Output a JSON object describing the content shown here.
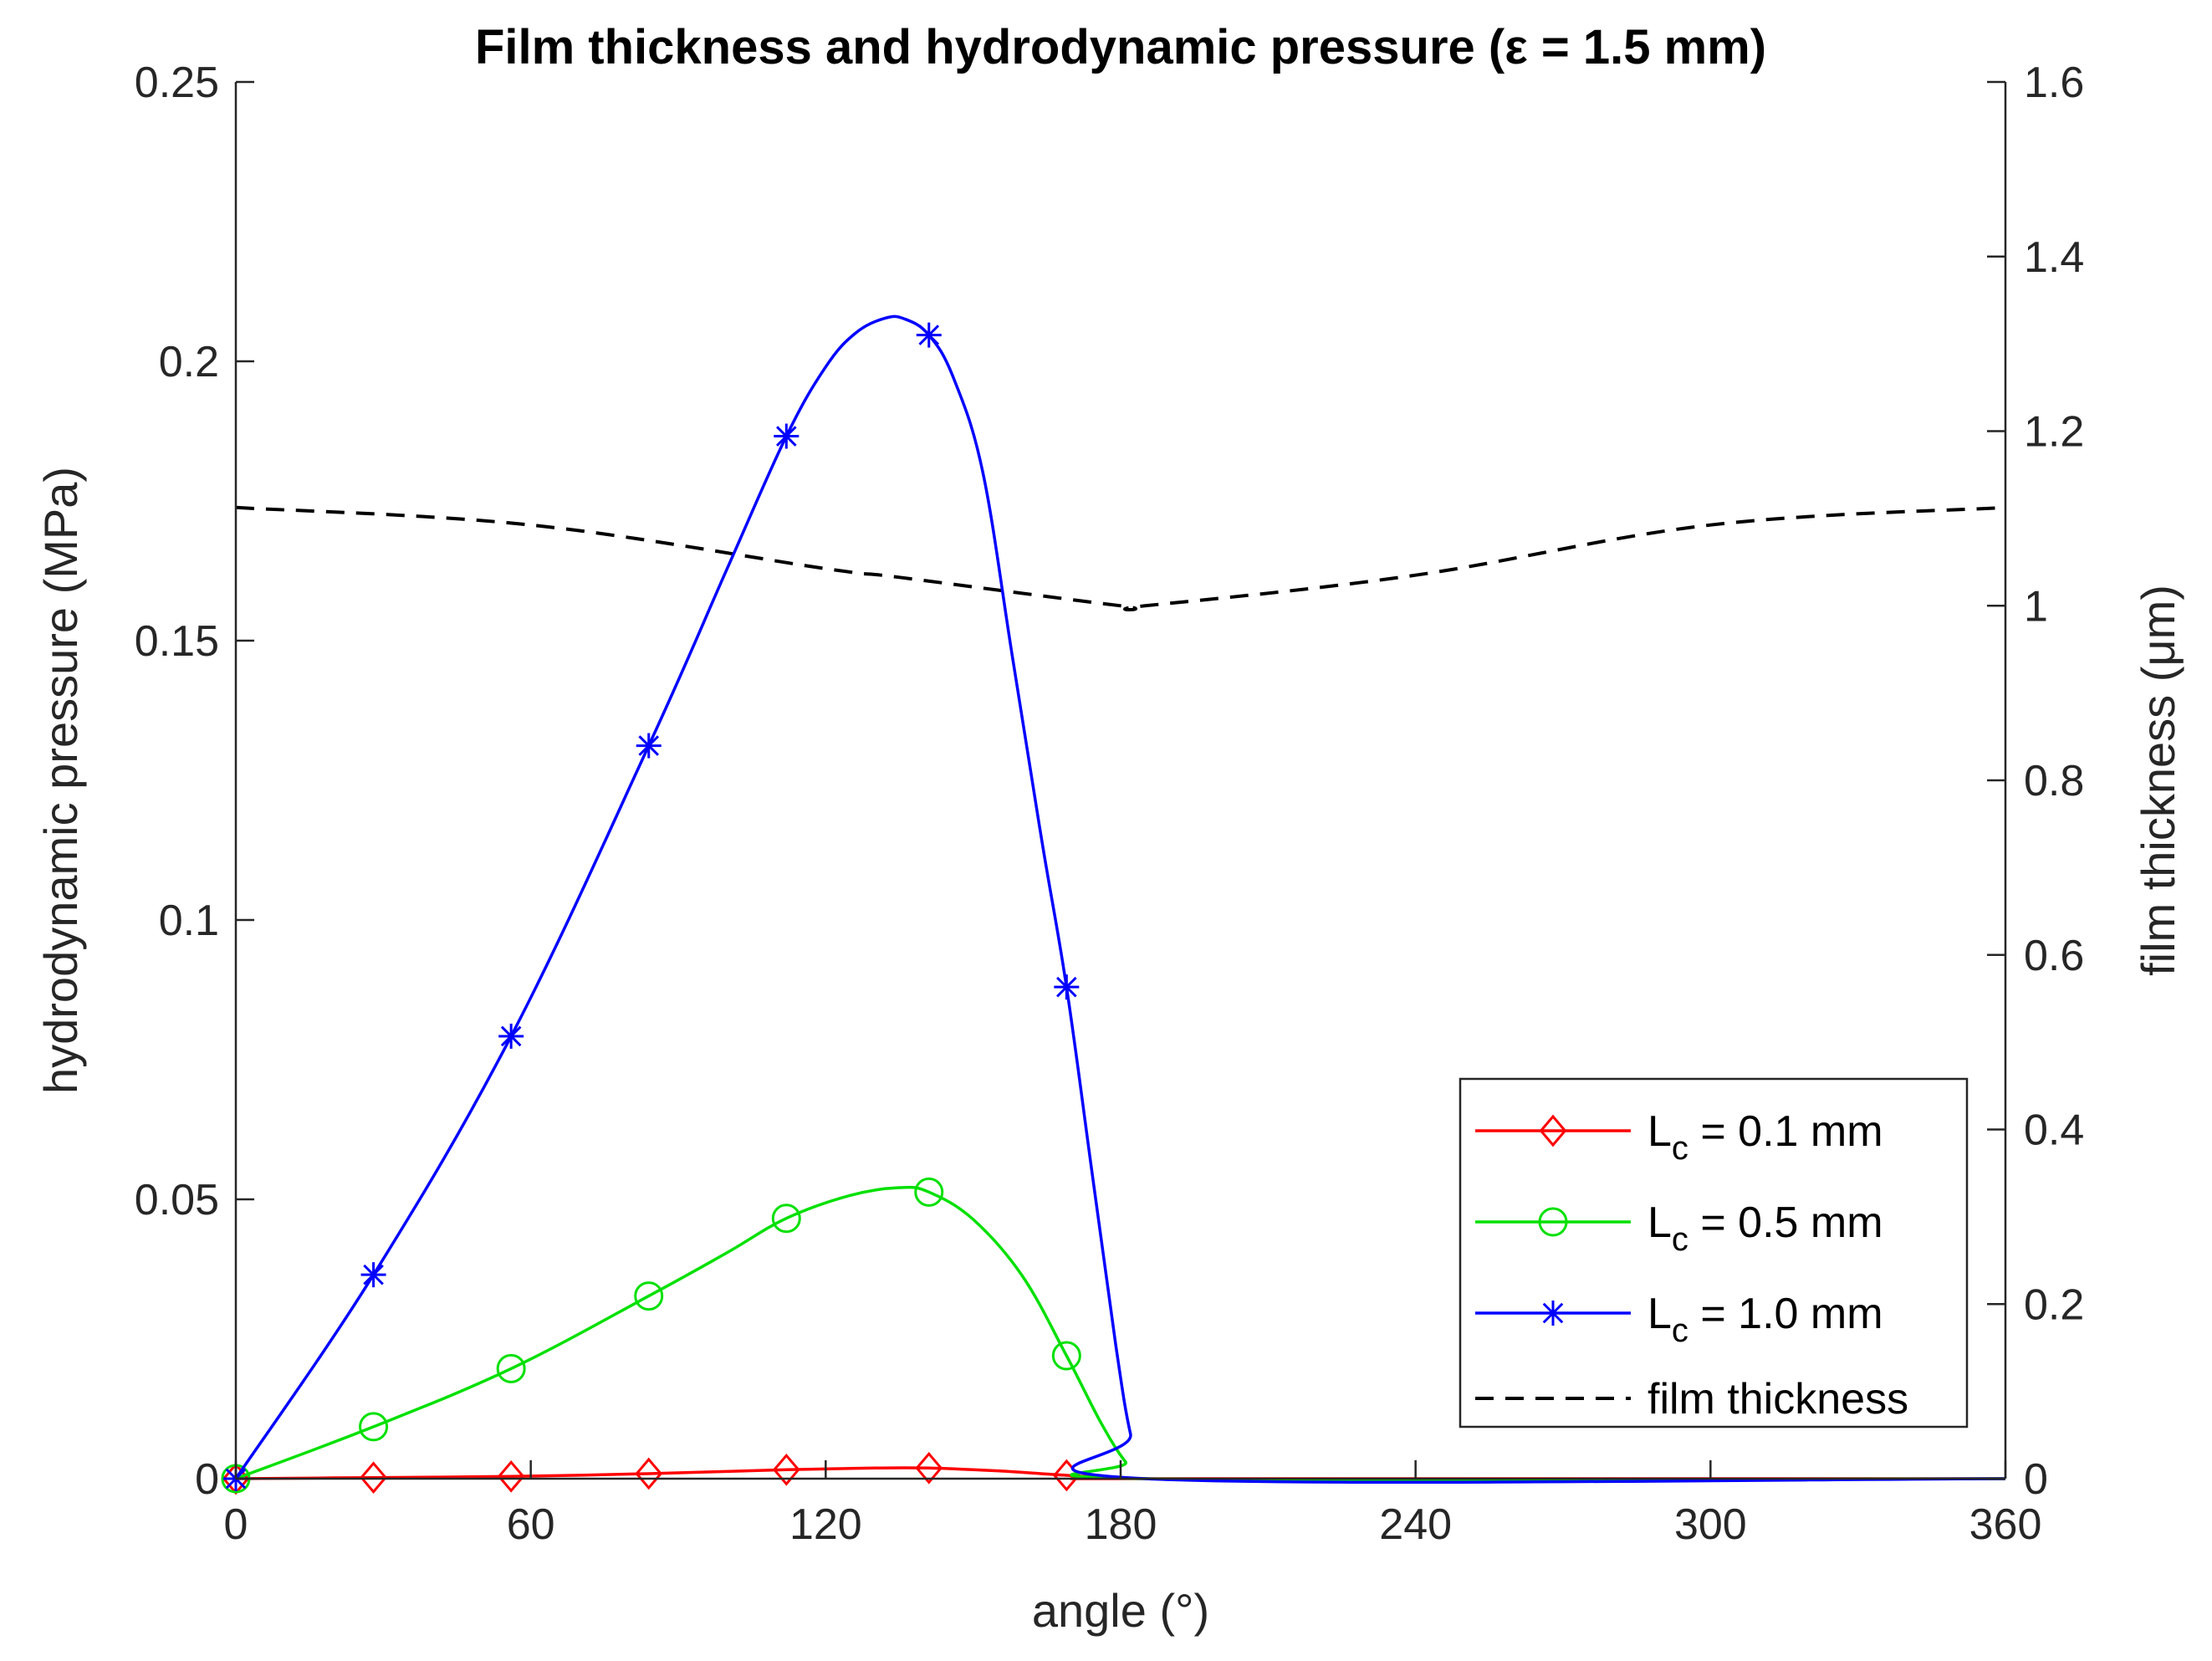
{
  "chart_data": {
    "type": "line",
    "title": "Film thickness and hydrodynamic pressure (ε = 1.5 mm)",
    "xlabel": "angle (°)",
    "ylabel_left": "hydrodynamic pressure (MPa)",
    "ylabel_right": "film thickness (μm)",
    "xlim": [
      0,
      360
    ],
    "ylim_left": [
      0,
      0.25
    ],
    "ylim_right": [
      0,
      1.6
    ],
    "xticks": [
      0,
      60,
      120,
      180,
      240,
      300,
      360
    ],
    "xtick_labels": [
      "0",
      "60",
      "120",
      "180",
      "240",
      "300",
      "360"
    ],
    "yticks_left": [
      0,
      0.05,
      0.1,
      0.15,
      0.2,
      0.25
    ],
    "ytick_labels_left": [
      "0",
      "0.05",
      "0.1",
      "0.15",
      "0.2",
      "0.25"
    ],
    "yticks_right": [
      0,
      0.2,
      0.4,
      0.6,
      0.8,
      1.0,
      1.2,
      1.4,
      1.6
    ],
    "ytick_labels_right": [
      "0",
      "0.2",
      "0.4",
      "0.6",
      "0.8",
      "1",
      "1.2",
      "1.4",
      "1.6"
    ],
    "legend_location": "bottom-right",
    "series": [
      {
        "name": "Lc = 0.1 mm",
        "legend_main": "L",
        "legend_sub": "c",
        "legend_rest": " = 0.1 mm",
        "axis": "left",
        "color": "#ff0000",
        "marker": "diamond",
        "line": "solid",
        "x": [
          0,
          28,
          56,
          84,
          112,
          130,
          141,
          155,
          169,
          180,
          185,
          360
        ],
        "y": [
          0,
          0.0002,
          0.0004,
          0.0009,
          0.0016,
          0.0019,
          0.0019,
          0.0014,
          0.0006,
          0.0001,
          0,
          0
        ],
        "marker_x": [
          0,
          28,
          56,
          84,
          112,
          141,
          169
        ],
        "marker_y": [
          0,
          0.0002,
          0.0004,
          0.0009,
          0.0016,
          0.0019,
          0.0006
        ]
      },
      {
        "name": "Lc = 0.5 mm",
        "legend_main": "L",
        "legend_sub": "c",
        "legend_rest": " = 0.5 mm",
        "axis": "left",
        "color": "#00e000",
        "marker": "circle",
        "line": "solid",
        "x": [
          0,
          28,
          56,
          84,
          100,
          112,
          125,
          135,
          141,
          150,
          160,
          169,
          176,
          181,
          185,
          360
        ],
        "y": [
          0,
          0.0093,
          0.0197,
          0.0327,
          0.0405,
          0.0466,
          0.0507,
          0.0521,
          0.0513,
          0.0464,
          0.0363,
          0.022,
          0.01,
          0.003,
          0,
          0
        ],
        "marker_x": [
          0,
          28,
          56,
          84,
          112,
          141,
          169
        ],
        "marker_y": [
          0,
          0.0093,
          0.0197,
          0.0327,
          0.0466,
          0.0513,
          0.022
        ]
      },
      {
        "name": "Lc = 1.0 mm",
        "legend_main": "L",
        "legend_sub": "c",
        "legend_rest": " = 1.0 mm",
        "axis": "left",
        "color": "#0000ff",
        "marker": "asterisk",
        "line": "solid",
        "x": [
          0,
          28,
          56,
          84,
          100,
          112,
          120,
          126,
          132,
          136,
          141,
          146,
          152,
          158,
          164,
          169,
          174,
          179,
          182,
          185,
          360
        ],
        "y": [
          0,
          0.0365,
          0.0792,
          0.1312,
          0.163,
          0.1866,
          0.199,
          0.205,
          0.2077,
          0.2076,
          0.2047,
          0.197,
          0.18,
          0.147,
          0.114,
          0.088,
          0.056,
          0.024,
          0.008,
          0,
          0
        ],
        "marker_x": [
          0,
          28,
          56,
          84,
          112,
          141,
          169
        ],
        "marker_y": [
          0,
          0.0365,
          0.0792,
          0.1312,
          0.1866,
          0.2047,
          0.088
        ]
      },
      {
        "name": "film thickness",
        "legend_main": "film thickness",
        "legend_sub": "",
        "legend_rest": "",
        "axis": "right",
        "color": "#000000",
        "marker": "none",
        "line": "dashed",
        "x": [
          0,
          60,
          120,
          135,
          180,
          185,
          240,
          300,
          360
        ],
        "y": [
          1.1125,
          1.0925,
          1.0425,
          1.0325,
          1.0,
          1.0,
          1.035,
          1.0925,
          1.1125
        ]
      }
    ]
  }
}
